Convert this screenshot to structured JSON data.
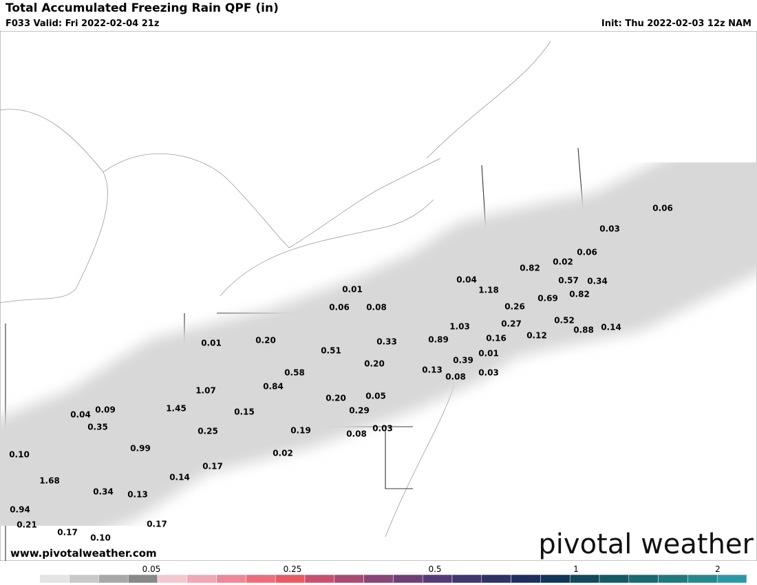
{
  "header": {
    "title": "Total Accumulated Freezing Rain QPF (in)",
    "valid": "F033 Valid: Fri 2022-02-04 21z",
    "init": "Init: Thu 2022-02-03 12z NAM"
  },
  "map": {
    "labels": [
      "0.01",
      "0.06",
      "0.08",
      "0.04",
      "1.18",
      "0.82",
      "0.02",
      "0.06",
      "0.57",
      "0.34",
      "0.69",
      "0.82",
      "0.26",
      "1.03",
      "0.27",
      "0.52",
      "0.88",
      "0.14",
      "0.89",
      "0.16",
      "0.12",
      "0.33",
      "0.01",
      "0.20",
      "0.51",
      "0.01",
      "0.39",
      "0.20",
      "0.13",
      "0.58",
      "0.08",
      "0.03",
      "0.84",
      "1.07",
      "0.05",
      "0.20",
      "0.04",
      "0.09",
      "1.45",
      "0.15",
      "0.29",
      "0.35",
      "0.25",
      "0.19",
      "0.03",
      "0.08",
      "0.99",
      "0.02",
      "0.10",
      "0.17",
      "0.14",
      "1.68",
      "0.34",
      "0.13",
      "0.94",
      "0.17",
      "0.21",
      "0.17",
      "0.10",
      "0.03",
      "0.06"
    ]
  },
  "watermark": "pivotal weather",
  "url": "www.pivotalweather.com",
  "colorbar": {
    "colors": [
      "#ffffff",
      "#e4e4e4",
      "#c8c8c8",
      "#a8a8a8",
      "#888888",
      "#f4c8d0",
      "#f0a8b4",
      "#ec8898",
      "#ea6e7e",
      "#e85a64",
      "#c8506e",
      "#a84a72",
      "#8a4476",
      "#6e3e78",
      "#563a78",
      "#423670",
      "#2e3266",
      "#1e2e60",
      "#123458",
      "#104a5c",
      "#145a64",
      "#1a6a70",
      "#207a7e",
      "#26888c",
      "#2c98a6"
    ],
    "ticks": [
      "0.05",
      "0.25",
      "0.5",
      "1",
      "2"
    ]
  }
}
